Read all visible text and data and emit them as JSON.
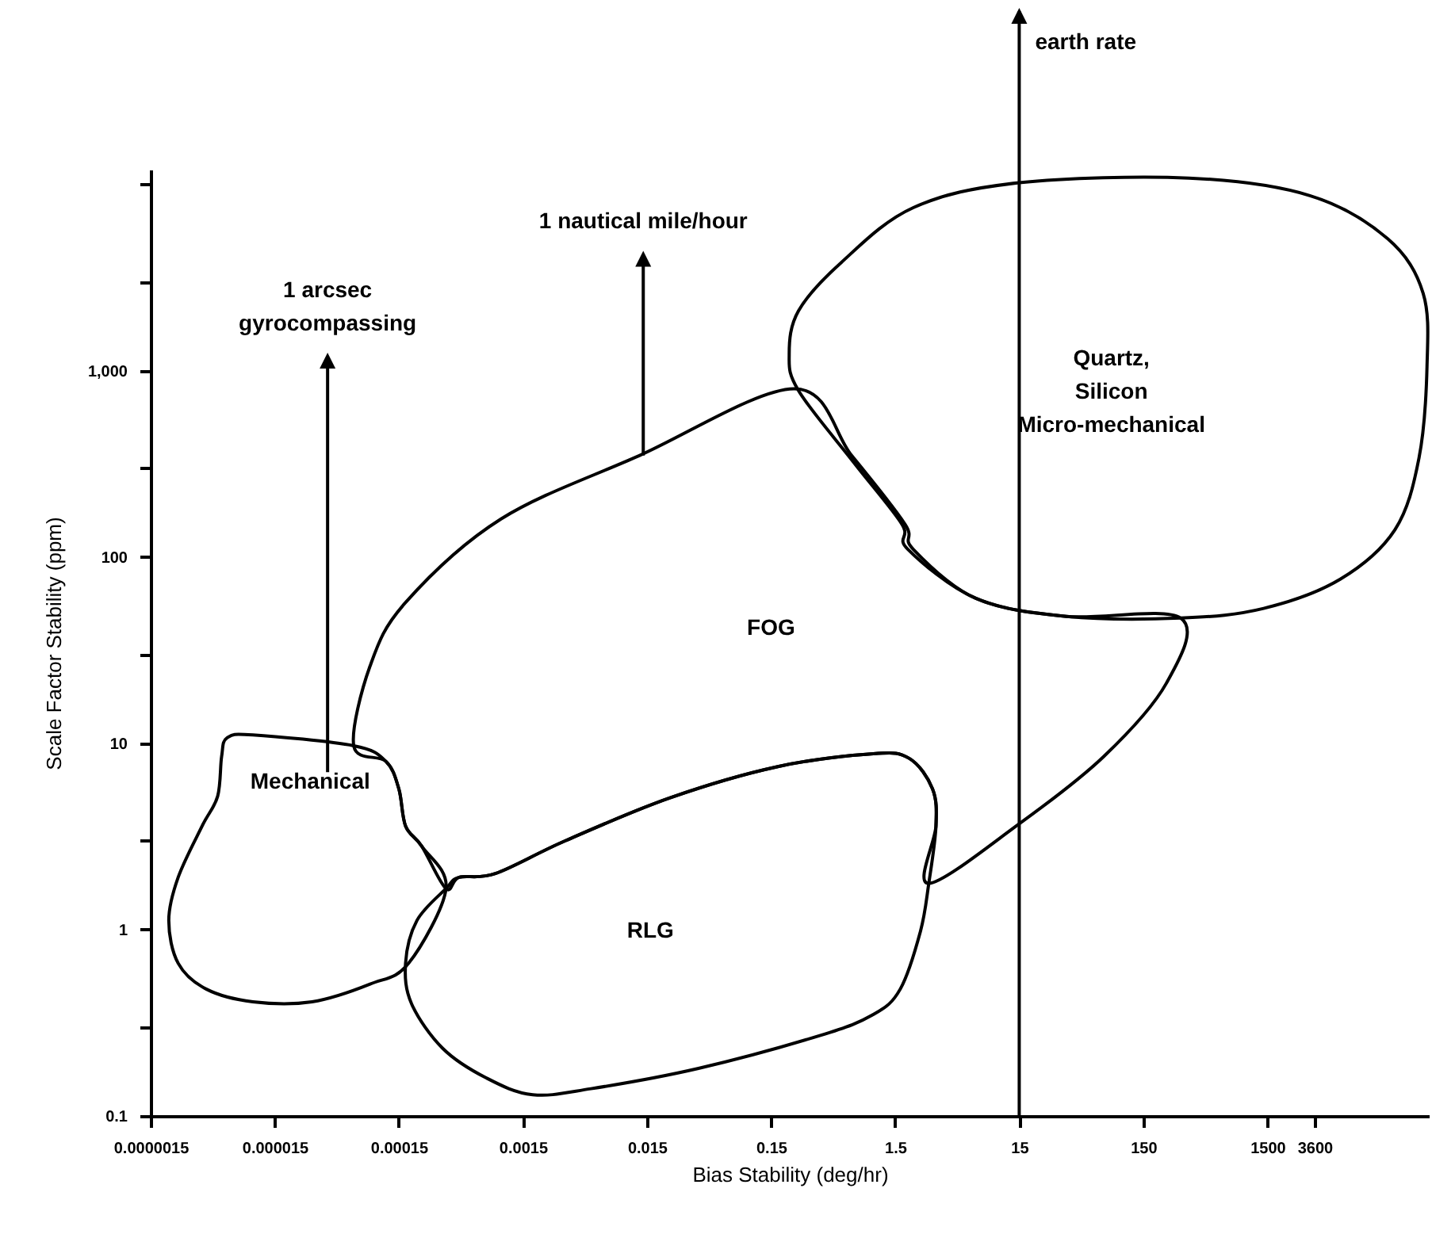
{
  "chart_data": {
    "type": "line",
    "xlabel": "Bias Stability (deg/hr)",
    "ylabel": "Scale Factor Stability (ppm)",
    "log": "xy",
    "xlim": [
      1.5e-06,
      30000
    ],
    "xticks": [
      {
        "value": 1.5e-06,
        "label": "0.0000015"
      },
      {
        "value": 1.5e-05,
        "label": "0.000015"
      },
      0.00015,
      0.0015,
      0.015,
      0.15,
      1.5,
      15,
      150,
      1500,
      3600
    ],
    "ylim": [
      0.1,
      12000
    ],
    "yticks": [
      0.1,
      {
        "value": 0.3,
        "label": null
      },
      1,
      {
        "value": 3,
        "label": null
      },
      10,
      {
        "value": 30,
        "label": null
      },
      100,
      {
        "value": 300,
        "label": null
      },
      {
        "value": 1000,
        "label": "1,000"
      },
      {
        "value": 3000,
        "label": null
      },
      {
        "value": 10000,
        "label": null
      }
    ],
    "ref_lines": [
      {
        "axis": "x",
        "value": 15,
        "label": "earth rate"
      }
    ],
    "annotations": [
      "1 arcsec\ngyrocompassing",
      "1 nautical mile/hour",
      "Mechanical",
      "RLG",
      "FOG",
      "Quartz,\nSilicon\nMicro-mechanical"
    ]
  }
}
